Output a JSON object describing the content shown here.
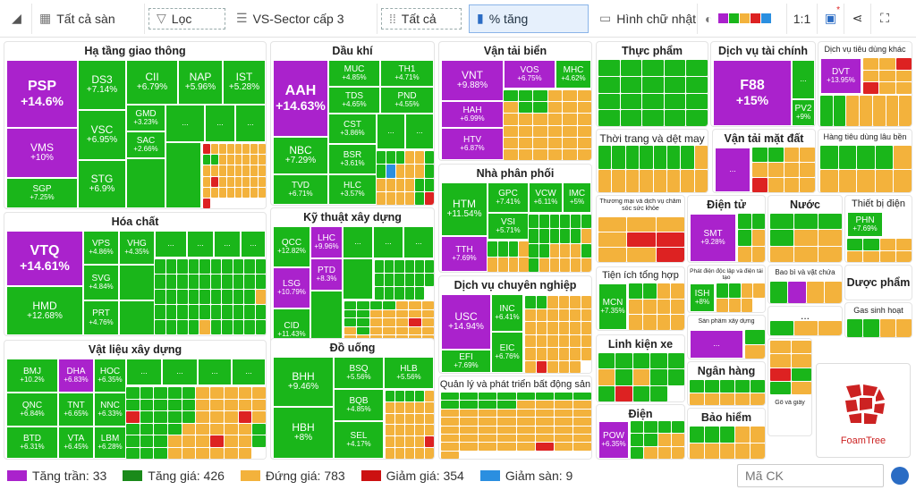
{
  "toolbar": {
    "all_exchanges": "Tất cả sàn",
    "filter": "Lọc",
    "sector_level": "VS-Sector cấp 3",
    "all": "Tất cả",
    "pct_change": "% tăng",
    "rectangle": "Hình chữ nhật",
    "ratio": "1:1",
    "colors": [
      "#aa22cc",
      "#1ab61a",
      "#f3b23c",
      "#dd2222",
      "#2b8fe0"
    ]
  },
  "groups": {
    "hatang": "Hạ tầng giao thông",
    "daukhi": "Dầu khí",
    "vantaibien": "Vận tải biển",
    "thucpham": "Thực phẩm",
    "dvtaichinh": "Dịch vụ tài chính",
    "dvtieudung": "Dịch vụ tiêu dùng khác",
    "thoitrang": "Thời trang và dệt may",
    "vantaimatdat": "Vận tải mặt đất",
    "hangtieudung": "Hàng tiêu dùng lâu bền",
    "nhaphanphoi": "Nhà phân phối",
    "hoachat": "Hóa chất",
    "kythuat": "Kỹ thuật xây dựng",
    "thuongmai": "Thương mại và dịch vụ chăm sóc sức khỏe",
    "dientu": "Điện tử",
    "nuoc": "Nước",
    "thietbidien": "Thiết bị điện",
    "phatdien": "Phát điện độc lập và điện tái tạo",
    "baobi": "Bao bì và vật chứa",
    "duocpham": "Dược phẩm",
    "tienich": "Tiện ích tổng hợp",
    "dvchuyennghiep": "Dịch vụ chuyên nghiệp",
    "khisinhhoat": "Gas sinh hoạt",
    "sanphamxaydung": "Sản phẩm xây dựng",
    "vlxd": "Vật liệu xây dựng",
    "douong": "Đồ uống",
    "linhkien": "Linh kiện xe",
    "nganhang": "Ngân hàng",
    "gogiay": "Gỗ và giấy",
    "qlbds": "Quản lý và phát triển bất động sản",
    "dien": "Điện",
    "baohiem": "Bảo hiểm"
  },
  "tiles": {
    "PSP": {
      "s": "PSP",
      "p": "+14.6%"
    },
    "VMS": {
      "s": "VMS",
      "p": "+10%"
    },
    "SGP": {
      "s": "SGP",
      "p": "+7.25%"
    },
    "DS3": {
      "s": "DS3",
      "p": "+7.14%"
    },
    "VSC": {
      "s": "VSC",
      "p": "+6.95%"
    },
    "STG": {
      "s": "STG",
      "p": "+6.9%"
    },
    "CII": {
      "s": "CII",
      "p": "+6.79%"
    },
    "NAP": {
      "s": "NAP",
      "p": "+5.96%"
    },
    "IST": {
      "s": "IST",
      "p": "+5.28%"
    },
    "GMD": {
      "s": "GMD",
      "p": "+3.23%"
    },
    "SAC": {
      "s": "SAC",
      "p": "+2.66%"
    },
    "AAH": {
      "s": "AAH",
      "p": "+14.63%"
    },
    "NBC": {
      "s": "NBC",
      "p": "+7.29%"
    },
    "TVD": {
      "s": "TVD",
      "p": "+6.71%"
    },
    "MUC": {
      "s": "MUC",
      "p": "+4.85%"
    },
    "TH1": {
      "s": "TH1",
      "p": "+4.71%"
    },
    "TDS": {
      "s": "TDS",
      "p": "+4.65%"
    },
    "PND": {
      "s": "PND",
      "p": "+4.55%"
    },
    "CST": {
      "s": "CST",
      "p": "+3.86%"
    },
    "BSR": {
      "s": "BSR",
      "p": "+3.61%"
    },
    "HLC": {
      "s": "HLC",
      "p": "+3.57%"
    },
    "VNT": {
      "s": "VNT",
      "p": "+9.88%"
    },
    "VOS": {
      "s": "VOS",
      "p": "+6.75%"
    },
    "MHC": {
      "s": "MHC",
      "p": "+4.62%"
    },
    "HAH": {
      "s": "HAH",
      "p": "+6.99%"
    },
    "HTV": {
      "s": "HTV",
      "p": "+6.87%"
    },
    "F88": {
      "s": "F88",
      "p": "+15%"
    },
    "PV2": {
      "s": "PV2",
      "p": "+9%"
    },
    "DVT": {
      "s": "DVT",
      "p": "+13.95%"
    },
    "VTQ": {
      "s": "VTQ",
      "p": "+14.61%"
    },
    "HMD": {
      "s": "HMD",
      "p": "+12.68%"
    },
    "VPS": {
      "s": "VPS",
      "p": "+4.86%"
    },
    "VHG": {
      "s": "VHG",
      "p": "+4.35%"
    },
    "SVG": {
      "s": "SVG",
      "p": "+4.84%"
    },
    "PRT": {
      "s": "PRT",
      "p": "+4.76%"
    },
    "QCC": {
      "s": "QCC",
      "p": "+12.82%"
    },
    "LHC": {
      "s": "LHC",
      "p": "+9.96%"
    },
    "LSG": {
      "s": "LSG",
      "p": "+10.79%"
    },
    "PTD": {
      "s": "PTD",
      "p": "+8.3%"
    },
    "CID": {
      "s": "CID",
      "p": "+11.43%"
    },
    "HTM": {
      "s": "HTM",
      "p": "+11.54%"
    },
    "GPC": {
      "s": "GPC",
      "p": "+7.41%"
    },
    "VCW": {
      "s": "VCW",
      "p": "+6.11%"
    },
    "IMC": {
      "s": "IMC",
      "p": "+5%"
    },
    "TTH": {
      "s": "TTH",
      "p": "+7.69%"
    },
    "VSI": {
      "s": "VSI",
      "p": "+5.71%"
    },
    "SMT": {
      "s": "SMT",
      "p": "+9.28%"
    },
    "PHN": {
      "s": "PHN",
      "p": "+7.69%"
    },
    "ISH": {
      "s": "ISH",
      "p": "+8%"
    },
    "MCN": {
      "s": "MCN",
      "p": "+7.35%"
    },
    "USC": {
      "s": "USC",
      "p": "+14.94%"
    },
    "INC": {
      "s": "INC",
      "p": "+6.41%"
    },
    "EIC": {
      "s": "EIC",
      "p": "+6.76%"
    },
    "EFI": {
      "s": "EFI",
      "p": "+7.69%"
    },
    "BMJ": {
      "s": "BMJ",
      "p": "+10.2%"
    },
    "DHA": {
      "s": "DHA",
      "p": "+6.83%"
    },
    "HOC": {
      "s": "HOC",
      "p": "+6.35%"
    },
    "QNC": {
      "s": "QNC",
      "p": "+6.84%"
    },
    "TNT": {
      "s": "TNT",
      "p": "+6.65%"
    },
    "NNC": {
      "s": "NNC",
      "p": "+6.33%"
    },
    "BTD": {
      "s": "BTD",
      "p": "+6.31%"
    },
    "VTA": {
      "s": "VTA",
      "p": "+6.45%"
    },
    "LBM": {
      "s": "LBM",
      "p": "+6.28%"
    },
    "BHH": {
      "s": "BHH",
      "p": "+9.46%"
    },
    "BSQ": {
      "s": "BSQ",
      "p": "+5.56%"
    },
    "HLB": {
      "s": "HLB",
      "p": "+5.56%"
    },
    "HBH": {
      "s": "HBH",
      "p": "+8%"
    },
    "BQB": {
      "s": "BQB",
      "p": "+4.85%"
    },
    "SEL": {
      "s": "SEL",
      "p": "+4.17%"
    },
    "POW": {
      "s": "POW",
      "p": "+6.35%"
    }
  },
  "more": "...",
  "legend": {
    "ceiling": "Tăng trần: 33",
    "up": "Tăng giá: 426",
    "ref": "Đứng giá: 783",
    "down": "Giảm giá: 354",
    "floor": "Giảm sàn: 9"
  },
  "search": {
    "placeholder": "Mã CK"
  },
  "logo": "FoamTree"
}
